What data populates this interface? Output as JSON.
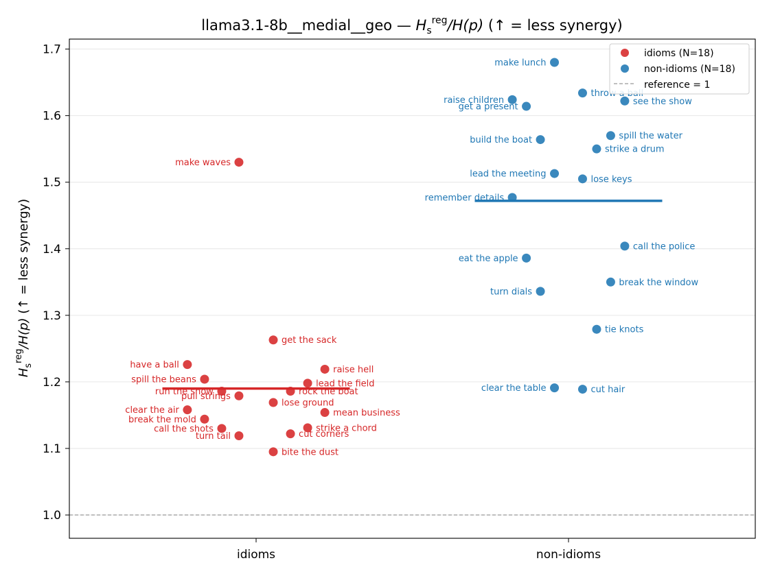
{
  "chart_data": {
    "type": "scatter",
    "title": "llama3.1-8b__medial__geo — H_s^reg/H(p)  (↑ = less synergy)",
    "title_parts": {
      "prefix": "llama3.1-8b__medial__geo — ",
      "ratio_numerator": "H",
      "ratio_sub": "s",
      "ratio_sup": "reg",
      "ratio_denominator": "/H(p)",
      "suffix": "  (↑ = less synergy)"
    },
    "ylabel": "H_s^reg/H(p)  (↑ = less synergy)",
    "ylabel_parts": {
      "numerator": "H",
      "sub": "s",
      "sup": "reg",
      "denominator": "/H(p)",
      "suffix": "  (↑ = less synergy)"
    },
    "categories": [
      "idioms",
      "non-idioms"
    ],
    "ylim": [
      0.965,
      1.715
    ],
    "yticks": [
      "1.0",
      "1.1",
      "1.2",
      "1.3",
      "1.4",
      "1.5",
      "1.6",
      "1.7"
    ],
    "grid": "horizontal",
    "reference": {
      "value": 1.0,
      "label": "reference = 1",
      "color": "#999999"
    },
    "legend": {
      "position": "top-right",
      "entries": [
        "idioms (N=18)",
        "non-idioms (N=18)",
        "reference = 1"
      ]
    },
    "series": [
      {
        "name": "idioms (N=18)",
        "category": "idioms",
        "color": "#d62728",
        "mean": 1.19,
        "points": [
          {
            "label": "make waves",
            "x": -0.055,
            "y": 1.53,
            "side": "left"
          },
          {
            "label": "get the sack",
            "x": 0.055,
            "y": 1.263,
            "side": "right"
          },
          {
            "label": "have a ball",
            "x": -0.22,
            "y": 1.226,
            "side": "left"
          },
          {
            "label": "raise hell",
            "x": 0.22,
            "y": 1.219,
            "side": "right"
          },
          {
            "label": "spill the beans",
            "x": -0.165,
            "y": 1.204,
            "side": "left"
          },
          {
            "label": "lead the field",
            "x": 0.165,
            "y": 1.198,
            "side": "right"
          },
          {
            "label": "run the show",
            "x": -0.11,
            "y": 1.186,
            "side": "left"
          },
          {
            "label": "rock the boat",
            "x": 0.11,
            "y": 1.186,
            "side": "right"
          },
          {
            "label": "pull strings",
            "x": -0.055,
            "y": 1.179,
            "side": "left"
          },
          {
            "label": "lose ground",
            "x": 0.055,
            "y": 1.169,
            "side": "right"
          },
          {
            "label": "clear the air",
            "x": -0.22,
            "y": 1.158,
            "side": "left"
          },
          {
            "label": "mean business",
            "x": 0.22,
            "y": 1.154,
            "side": "right"
          },
          {
            "label": "break the mold",
            "x": -0.165,
            "y": 1.144,
            "side": "left"
          },
          {
            "label": "strike a chord",
            "x": 0.165,
            "y": 1.131,
            "side": "right"
          },
          {
            "label": "call the shots",
            "x": -0.11,
            "y": 1.13,
            "side": "left"
          },
          {
            "label": "cut corners",
            "x": 0.11,
            "y": 1.122,
            "side": "right"
          },
          {
            "label": "turn tail",
            "x": -0.055,
            "y": 1.119,
            "side": "left"
          },
          {
            "label": "bite the dust",
            "x": 0.055,
            "y": 1.095,
            "side": "right"
          }
        ]
      },
      {
        "name": "non-idioms (N=18)",
        "category": "non-idioms",
        "color": "#1f77b4",
        "mean": 1.472,
        "points": [
          {
            "label": "make lunch",
            "x": -0.045,
            "y": 1.68,
            "side": "left"
          },
          {
            "label": "throw a ball",
            "x": 0.045,
            "y": 1.634,
            "side": "right"
          },
          {
            "label": "raise children",
            "x": -0.18,
            "y": 1.624,
            "side": "left"
          },
          {
            "label": "see the show",
            "x": 0.18,
            "y": 1.622,
            "side": "right"
          },
          {
            "label": "get a present",
            "x": -0.135,
            "y": 1.614,
            "side": "left"
          },
          {
            "label": "spill the water",
            "x": 0.135,
            "y": 1.57,
            "side": "right"
          },
          {
            "label": "build the boat",
            "x": -0.09,
            "y": 1.564,
            "side": "left"
          },
          {
            "label": "strike a drum",
            "x": 0.09,
            "y": 1.55,
            "side": "right"
          },
          {
            "label": "lead the meeting",
            "x": -0.045,
            "y": 1.513,
            "side": "left"
          },
          {
            "label": "lose keys",
            "x": 0.045,
            "y": 1.505,
            "side": "right"
          },
          {
            "label": "remember details",
            "x": -0.18,
            "y": 1.477,
            "side": "left"
          },
          {
            "label": "call the police",
            "x": 0.18,
            "y": 1.404,
            "side": "right"
          },
          {
            "label": "eat the apple",
            "x": -0.135,
            "y": 1.386,
            "side": "left"
          },
          {
            "label": "break the window",
            "x": 0.135,
            "y": 1.35,
            "side": "right"
          },
          {
            "label": "turn dials",
            "x": -0.09,
            "y": 1.336,
            "side": "left"
          },
          {
            "label": "tie knots",
            "x": 0.09,
            "y": 1.279,
            "side": "right"
          },
          {
            "label": "clear the table",
            "x": -0.045,
            "y": 1.191,
            "side": "left"
          },
          {
            "label": "cut hair",
            "x": 0.045,
            "y": 1.189,
            "side": "right"
          }
        ]
      }
    ]
  }
}
